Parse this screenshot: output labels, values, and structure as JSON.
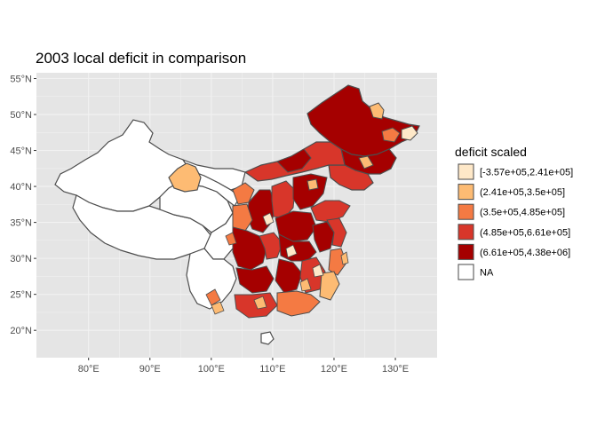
{
  "chart_data": {
    "type": "choropleth-map",
    "title": "2003 local deficit in comparison",
    "xlabel": "",
    "ylabel": "",
    "x_ticks": [
      "80°E",
      "90°E",
      "100°E",
      "110°E",
      "120°E",
      "130°E"
    ],
    "x_tick_values": [
      80,
      90,
      100,
      110,
      120,
      130
    ],
    "y_ticks": [
      "20°N",
      "25°N",
      "30°N",
      "35°N",
      "40°N",
      "45°N",
      "50°N",
      "55°N"
    ],
    "y_tick_values": [
      20,
      25,
      30,
      35,
      40,
      45,
      50,
      55
    ],
    "xlim": [
      71.5,
      136.8
    ],
    "ylim": [
      16.2,
      55.8
    ],
    "grid": true,
    "legend_placement": "right",
    "legend": {
      "title": "deficit scaled",
      "entries": [
        {
          "label": "[-3.57e+05,2.41e+05]",
          "color": "#fee8c8"
        },
        {
          "label": "(2.41e+05,3.5e+05]",
          "color": "#fdbb73"
        },
        {
          "label": "(3.5e+05,4.85e+05]",
          "color": "#f47a43"
        },
        {
          "label": "(4.85e+05,6.61e+05]",
          "color": "#d8362a"
        },
        {
          "label": "(6.61e+05,4.38e+06]",
          "color": "#a50000"
        },
        {
          "label": "NA",
          "color": "#ffffff"
        }
      ]
    },
    "colors": {
      "panel_background": "#e5e5e5",
      "grid_line": "#f2f2f2",
      "border": "#4d4d4d"
    }
  }
}
